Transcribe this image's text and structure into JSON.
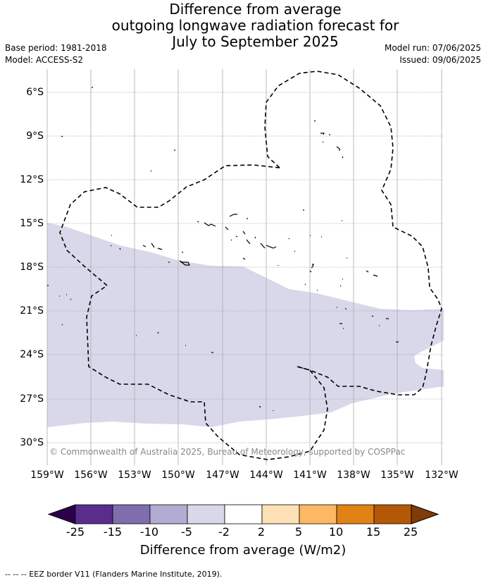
{
  "title": {
    "line1": "Difference from average",
    "line2": "outgoing longwave radiation forecast for",
    "line3": "July to September 2025"
  },
  "meta": {
    "base_period": "Base period: 1981-2018",
    "model": "Model: ACCESS-S2",
    "model_run": "Model run: 07/06/2025",
    "issued": "Issued: 09/06/2025"
  },
  "map": {
    "lat_labels": [
      "6°S",
      "9°S",
      "12°S",
      "15°S",
      "18°S",
      "21°S",
      "24°S",
      "27°S",
      "30°S"
    ],
    "lon_labels": [
      "159°W",
      "156°W",
      "153°W",
      "150°W",
      "147°W",
      "144°W",
      "141°W",
      "138°W",
      "135°W",
      "132°W"
    ],
    "anomaly_band_color": "#d8d8ea",
    "anomaly_band_category": "-5 to -2",
    "eez_border_style": "dashed",
    "copyright": "© Commonwealth of Australia 2025, Bureau of Meteorology, supported by COSPPac"
  },
  "colorbar": {
    "labels": [
      "-25",
      "-15",
      "-10",
      "-5",
      "-2",
      "2",
      "5",
      "10",
      "15",
      "25"
    ],
    "colors": [
      "#5a2d8c",
      "#7f6ead",
      "#b2acd4",
      "#d8d8ea",
      "#ffffff",
      "#fde0b6",
      "#fdb863",
      "#e08214",
      "#b35806"
    ],
    "min_extend_color": "#2d004b",
    "max_extend_color": "#7f3b08",
    "title": "Difference from average (W/m2)"
  },
  "footnote": "--  --  -- EEZ border V11 (Flanders Marine Institute, 2019)."
}
